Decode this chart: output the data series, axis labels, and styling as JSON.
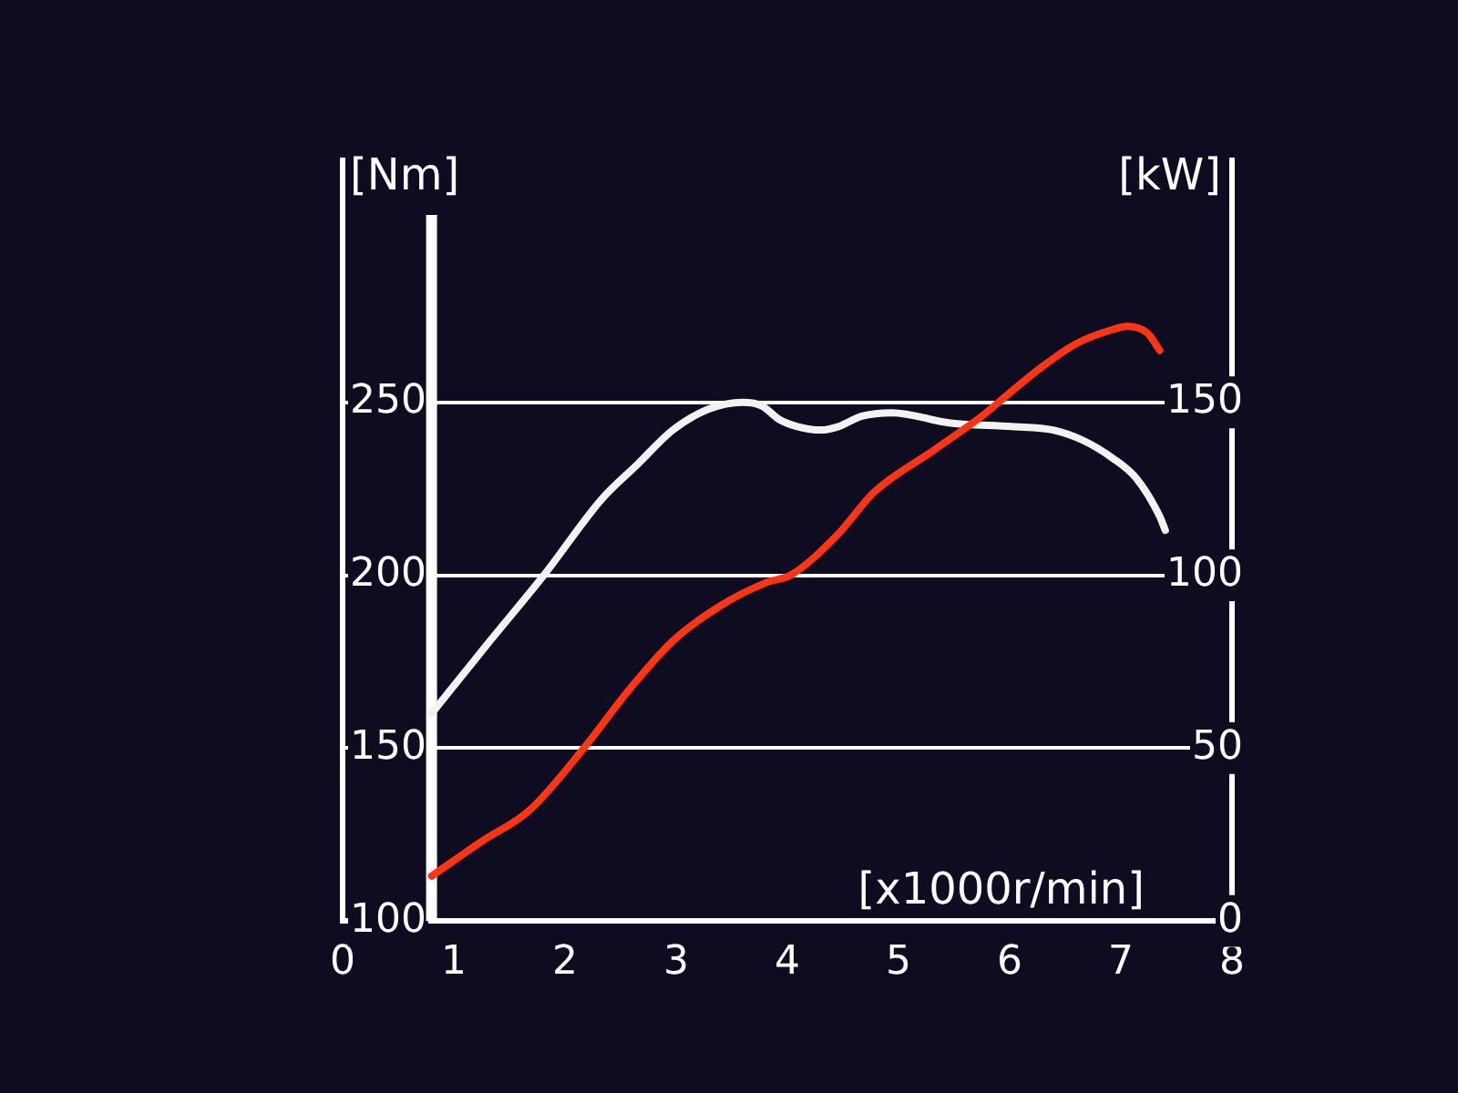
{
  "chart_data": {
    "type": "line",
    "xlabel": "[x1000r/min]",
    "ylabel": "[Nm]",
    "y2label": "[kW]",
    "xlim": [
      0,
      8
    ],
    "xticks": [
      0,
      1,
      2,
      3,
      4,
      5,
      6,
      7,
      8
    ],
    "ylim": [
      100,
      320
    ],
    "yticks": [
      100,
      150,
      200,
      250
    ],
    "y2lim": [
      0,
      220
    ],
    "y2ticks": [
      0,
      50,
      100,
      150
    ],
    "grid": "y",
    "line_style": "solid",
    "ref_lines": [
      {
        "axis": "x",
        "value": 0.8,
        "color": "#ffffff"
      }
    ],
    "series": [
      {
        "color": "#f2f2f2",
        "x": [
          0.8,
          1.3,
          1.81,
          2.33,
          2.65,
          2.97,
          3.29,
          3.6,
          3.77,
          3.93,
          4.09,
          4.3,
          4.46,
          4.67,
          4.94,
          5.47,
          6.02,
          6.39,
          6.66,
          6.92,
          7.14,
          7.35,
          7.4
        ],
        "values": [
          160,
          180,
          200,
          222,
          232,
          242,
          248,
          250,
          249,
          245,
          243,
          242,
          243,
          246,
          247,
          244,
          243,
          242,
          239,
          234,
          228,
          217,
          213
        ]
      },
      {
        "color": "#ff3414",
        "axis": "y2",
        "x": [
          0.8,
          1.25,
          1.68,
          2.17,
          2.58,
          2.97,
          3.39,
          3.82,
          4.03,
          4.46,
          4.78,
          5.31,
          5.75,
          5.9,
          6.28,
          6.6,
          6.92,
          7.06,
          7.24,
          7.35
        ],
        "values": [
          13,
          23,
          32,
          50,
          67,
          81,
          91,
          98,
          100,
          112,
          124,
          136,
          146,
          150,
          160,
          167,
          171,
          172,
          170,
          165
        ]
      }
    ]
  }
}
